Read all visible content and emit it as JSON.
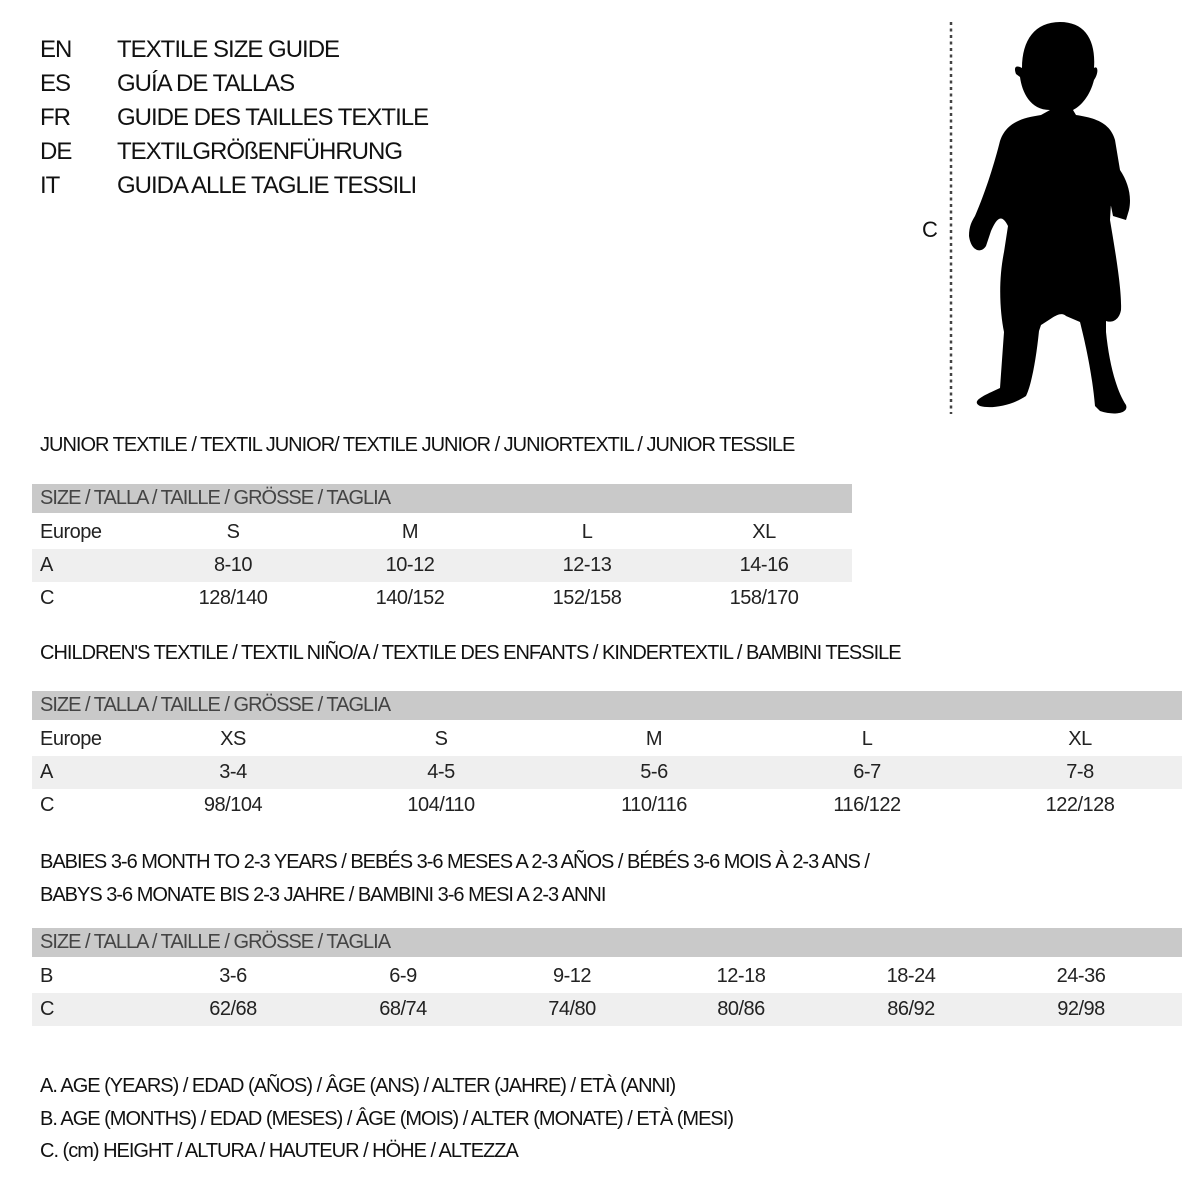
{
  "languages": [
    {
      "code": "EN",
      "title": "TEXTILE SIZE GUIDE"
    },
    {
      "code": "ES",
      "title": "GUÍA DE TALLAS"
    },
    {
      "code": "FR",
      "title": "GUIDE DES TAILLES TEXTILE"
    },
    {
      "code": "DE",
      "title": "TEXTILGRÖßENFÜHRUNG"
    },
    {
      "code": "IT",
      "title": "GUIDA ALLE TAGLIE TESSILI"
    }
  ],
  "figure": {
    "measure_label": "C",
    "icon": "child-silhouette-icon"
  },
  "colors": {
    "header_bg": "#c9c9c9",
    "shaded_row": "#efefef",
    "text": "#111111"
  },
  "sections": [
    {
      "heading_lines": [
        "JUNIOR TEXTILE / TEXTIL JUNIOR/ TEXTILE JUNIOR / JUNIORTEXTIL / JUNIOR TESSILE"
      ],
      "table": {
        "header": "SIZE / TALLA / TAILLE / GRÖSSE / TAGLIA",
        "rows": [
          {
            "label": "Europe",
            "values": [
              "S",
              "M",
              "L",
              "XL"
            ]
          },
          {
            "label": "A",
            "values": [
              "8-10",
              "10-12",
              "12-13",
              "14-16"
            ]
          },
          {
            "label": "C",
            "values": [
              "128/140",
              "140/152",
              "152/158",
              "158/170"
            ]
          }
        ]
      }
    },
    {
      "heading_lines": [
        "CHILDREN'S TEXTILE / TEXTIL NIÑO/A / TEXTILE DES ENFANTS / KINDERTEXTIL / BAMBINI TESSILE"
      ],
      "table": {
        "header": "SIZE / TALLA / TAILLE / GRÖSSE / TAGLIA",
        "rows": [
          {
            "label": "Europe",
            "values": [
              "XS",
              "S",
              "M",
              "L",
              "XL"
            ]
          },
          {
            "label": "A",
            "values": [
              "3-4",
              "4-5",
              "5-6",
              "6-7",
              "7-8"
            ]
          },
          {
            "label": "C",
            "values": [
              "98/104",
              "104/110",
              "110/116",
              "116/122",
              "122/128"
            ]
          }
        ]
      }
    },
    {
      "heading_lines": [
        "BABIES 3-6 MONTH TO 2-3 YEARS / BEBÉS 3-6 MESES A 2-3 AÑOS / BÉBÉS 3-6 MOIS À 2-3 ANS /",
        "BABYS 3-6 MONATE BIS 2-3 JAHRE / BAMBINI 3-6 MESI A 2-3 ANNI"
      ],
      "table": {
        "header": "SIZE / TALLA / TAILLE / GRÖSSE / TAGLIA",
        "rows": [
          {
            "label": "B",
            "values": [
              "3-6",
              "6-9",
              "9-12",
              "12-18",
              "18-24",
              "24-36"
            ]
          },
          {
            "label": "C",
            "values": [
              "62/68",
              "68/74",
              "74/80",
              "80/86",
              "86/92",
              "92/98"
            ]
          }
        ]
      }
    }
  ],
  "legend": [
    "A. AGE (YEARS) / EDAD (AÑOS) / ÂGE (ANS) / ALTER (JAHRE) / ETÀ (ANNI)",
    "B. AGE (MONTHS) / EDAD (MESES) / ÂGE (MOIS) / ALTER (MONATE) / ETÀ (MESI)",
    "C. (cm) HEIGHT / ALTURA / HAUTEUR / HÖHE / ALTEZZA"
  ]
}
